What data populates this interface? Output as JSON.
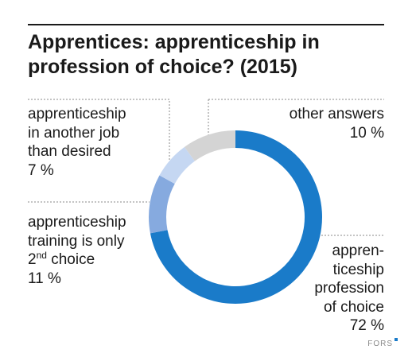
{
  "title_lines": [
    "Apprentices: apprenticeship in",
    "profession of choice? (2015)"
  ],
  "colors": {
    "profession_of_choice": "#1a7bc9",
    "second_choice": "#86aadf",
    "another_job": "#c5d7f2",
    "other": "#d4d4d4",
    "leader_line": "#8a8a8a"
  },
  "labels": {
    "another_job": {
      "lines": [
        "apprenticeship",
        "in another job",
        "than desired"
      ],
      "value": "7 %"
    },
    "other": {
      "lines": [
        "other answers"
      ],
      "value": "10 %"
    },
    "second_choice": {
      "lines": [
        "apprenticeship",
        "training is only"
      ],
      "sup_base": "2",
      "sup": "nd",
      "sup_rest": " choice",
      "value": "11 %"
    },
    "profession_of_choice": {
      "lines": [
        "appren-",
        "ticeship",
        "profession",
        "of choice"
      ],
      "value": "72 %"
    }
  },
  "footer": {
    "brand": "FORS"
  },
  "chart_data": {
    "type": "pie",
    "donut": true,
    "title": "Apprentices: apprenticeship in profession of choice? (2015)",
    "unit": "%",
    "slices": [
      {
        "label": "apprenticeship profession of choice",
        "value": 72,
        "color": "#1a7bc9"
      },
      {
        "label": "apprenticeship training is only 2nd choice",
        "value": 11,
        "color": "#86aadf"
      },
      {
        "label": "apprenticeship in another job than desired",
        "value": 7,
        "color": "#c5d7f2"
      },
      {
        "label": "other answers",
        "value": 10,
        "color": "#d4d4d4"
      }
    ]
  }
}
